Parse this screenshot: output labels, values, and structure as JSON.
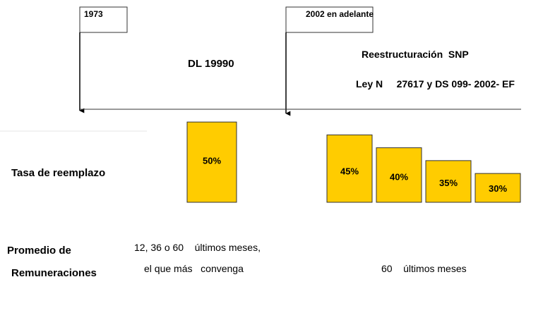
{
  "timeline": {
    "markers": [
      "1973",
      "2002 en adelante"
    ]
  },
  "periods": [
    {
      "title": "DL 19990"
    },
    {
      "title": "Reestructuración  SNP",
      "subtitle": "Ley N     27617 y DS 099- 2002- EF"
    }
  ],
  "replacement": {
    "label": "Tasa de reemplazo",
    "groups": [
      {
        "values": [
          50
        ],
        "value_labels": [
          "50%"
        ]
      },
      {
        "values": [
          45,
          40,
          35,
          30
        ],
        "value_labels": [
          "45%",
          "40%",
          "35%",
          "30%"
        ]
      }
    ]
  },
  "remuneration": {
    "label": [
      "Promedio de",
      "Remuneraciones"
    ],
    "periods": [
      [
        "12, 36 o 60    últimos meses,",
        "el que más   convenga"
      ],
      [
        "60    últimos meses"
      ]
    ]
  }
}
